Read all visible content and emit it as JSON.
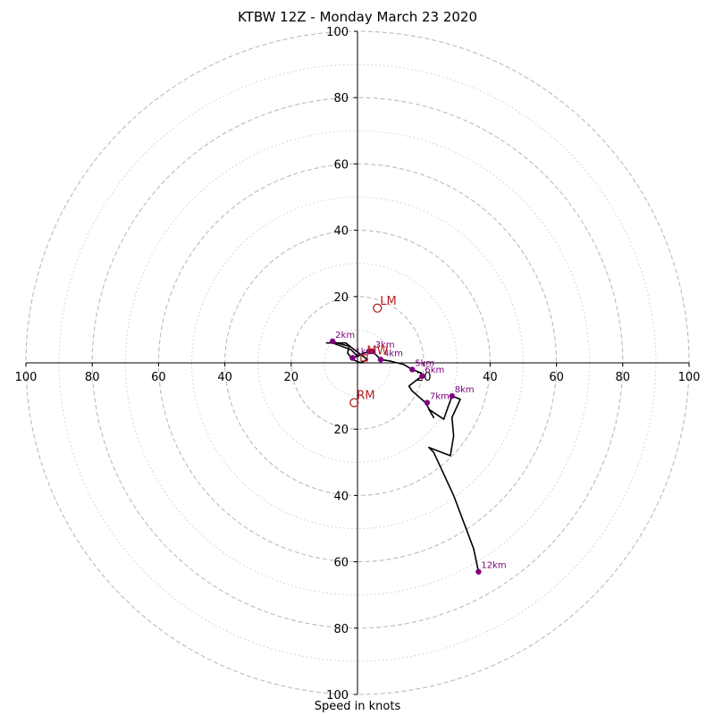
{
  "chart_data": {
    "type": "hodograph",
    "title": "KTBW 12Z - Monday March 23 2020",
    "xlabel": "Speed in knots",
    "axis_range": [
      -100,
      100
    ],
    "ring_values": [
      20,
      40,
      60,
      80,
      100
    ],
    "minor_ring_values": [
      10,
      30,
      50,
      70,
      90
    ],
    "x_tick_labels": [
      "100",
      "80",
      "60",
      "40",
      "20",
      "20",
      "40",
      "60",
      "80",
      "100"
    ],
    "y_tick_labels": [
      "100",
      "80",
      "60",
      "40",
      "20",
      "20",
      "40",
      "60",
      "80",
      "100"
    ],
    "grid": true,
    "colors": {
      "trace": "#000000",
      "height_markers": "#800080",
      "storm_motion": "#b22222",
      "grid": "#bbbbbb"
    },
    "trace": [
      [
        -9.5,
        6
      ],
      [
        -3.5,
        6
      ],
      [
        -1,
        4
      ],
      [
        1,
        2.5
      ],
      [
        3,
        1
      ],
      [
        1,
        0
      ],
      [
        -1.5,
        1
      ],
      [
        -3,
        3
      ],
      [
        -2.5,
        5
      ],
      [
        -8,
        6.5
      ],
      [
        -7.5,
        6
      ],
      [
        -2,
        4
      ],
      [
        0,
        2
      ],
      [
        -1.5,
        1.5
      ],
      [
        0,
        2
      ],
      [
        2,
        3
      ],
      [
        4,
        3.5
      ],
      [
        5,
        3
      ],
      [
        7,
        1
      ],
      [
        10,
        0.5
      ],
      [
        14,
        -0.5
      ],
      [
        16.5,
        -2
      ],
      [
        19,
        -3
      ],
      [
        19.5,
        -4
      ],
      [
        18,
        -5
      ],
      [
        15.5,
        -7
      ],
      [
        16.5,
        -8.5
      ],
      [
        20.5,
        -12
      ],
      [
        23,
        -16.5
      ],
      [
        21.5,
        -14
      ],
      [
        26,
        -17
      ],
      [
        28.5,
        -10
      ],
      [
        31,
        -11
      ],
      [
        28.5,
        -16.5
      ],
      [
        29,
        -22
      ],
      [
        28,
        -28
      ],
      [
        21.5,
        -25.5
      ],
      [
        23,
        -27
      ],
      [
        29,
        -40
      ],
      [
        35,
        -56
      ],
      [
        36.5,
        -63
      ]
    ],
    "height_markers": [
      {
        "label": "1km",
        "x": -1.5,
        "y": 1.5
      },
      {
        "label": "2km",
        "x": -7.5,
        "y": 6.5
      },
      {
        "label": "3km",
        "x": 4.5,
        "y": 3.5
      },
      {
        "label": "4km",
        "x": 7,
        "y": 1
      },
      {
        "label": "5km",
        "x": 16.5,
        "y": -2
      },
      {
        "label": "6km",
        "x": 19.5,
        "y": -4
      },
      {
        "label": "7km",
        "x": 21,
        "y": -12
      },
      {
        "label": "8km",
        "x": 28.5,
        "y": -10
      },
      {
        "label": "12km",
        "x": 36.5,
        "y": -63
      }
    ],
    "extra_points": [
      {
        "x": -1.5,
        "y": 1.5
      },
      {
        "x": 3.5,
        "y": 3.5
      }
    ],
    "storm_motion": [
      {
        "label": "LM",
        "x": 6,
        "y": 16.5
      },
      {
        "label": "RM",
        "x": -1,
        "y": -12
      }
    ],
    "mean_wind_marker": {
      "label": "MW",
      "x": 2,
      "y": 1.5
    }
  }
}
